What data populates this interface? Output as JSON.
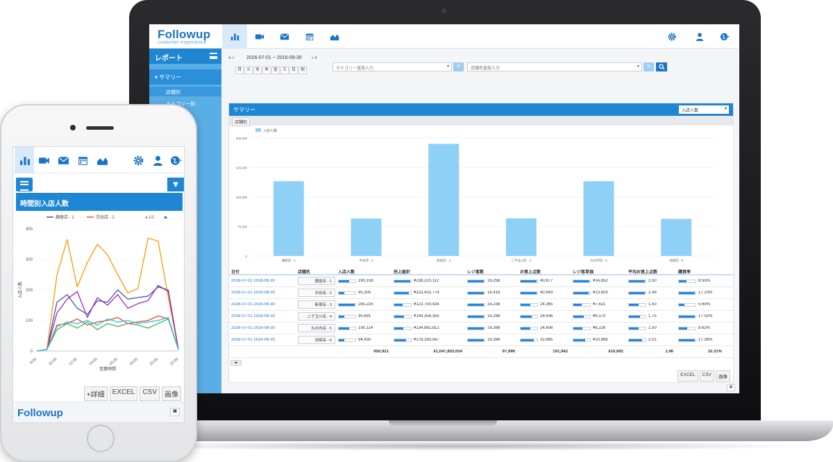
{
  "laptop": {
    "logo": {
      "brand": "Followup",
      "tagline": "customer experience"
    },
    "sidebar": {
      "title": "レポート",
      "section": "サマリー",
      "items": [
        {
          "label": "店舗別"
        },
        {
          "label": "カテゴリー別"
        }
      ]
    },
    "filters": {
      "start_date": "2016-07-01",
      "separator": "~",
      "end_date": "2016-09-30",
      "days": [
        "月",
        "火",
        "水",
        "木",
        "金",
        "土",
        "日",
        "祝"
      ],
      "category_placeholder": "カテゴリー直接入力",
      "store_placeholder": "店舗名直接入力"
    },
    "panel": {
      "title": "サマリー",
      "metric_select": "入店人数",
      "tab": "店舗別"
    },
    "table": {
      "headers": [
        "日付",
        "店舗名",
        "入店人数",
        "売上総計",
        "レジ客数",
        "お買上点数",
        "レジ客単価",
        "平均お買上点数",
        "購買率"
      ],
      "rows": [
        {
          "date": "2016-07-01 2016-09-30",
          "store": "銀座店 - 1",
          "visitors": "190,156",
          "sales": "¥238,220,112",
          "customers": "16,258",
          "items": "40,677",
          "unit_price": "¥14,652",
          "avg_items": "2.50",
          "rate": "8.55%"
        },
        {
          "date": "2016-07-01 2016-09-30",
          "store": "渋谷店 - 2",
          "visitors": "95,305",
          "sales": "¥223,432,774",
          "customers": "16,418",
          "items": "40,943",
          "unit_price": "¥13,609",
          "avg_items": "2.49",
          "rate": "17.23%"
        },
        {
          "date": "2016-07-01 2016-09-30",
          "store": "新宿店 - 3",
          "visitors": "285,225",
          "sales": "¥123,750,434",
          "customers": "16,238",
          "items": "24,365",
          "unit_price": "¥7,621",
          "avg_items": "1.50",
          "rate": "5.69%"
        },
        {
          "date": "2016-07-01 2016-09-30",
          "store": "二子玉川店 - 4",
          "visitors": "95,691",
          "sales": "¥149,356,355",
          "customers": "16,288",
          "items": "28,436",
          "unit_price": "¥9,170",
          "avg_items": "1.75",
          "rate": "17.02%"
        },
        {
          "date": "2016-07-01 2016-09-30",
          "store": "丸の内店 - 5",
          "visitors": "190,114",
          "sales": "¥134,882,812",
          "customers": "16,398",
          "items": "24,606",
          "unit_price": "¥8,226",
          "avg_items": "1.50",
          "rate": "8.63%"
        },
        {
          "date": "2016-07-01 2016-09-30",
          "store": "池袋店 - 6",
          "visitors": "94,430",
          "sales": "¥178,160,567",
          "customers": "16,396",
          "items": "32,695",
          "unit_price": "¥10,866",
          "avg_items": "2.01",
          "rate": "17.36%"
        }
      ],
      "totals": {
        "visitors": "950,921",
        "sales": "¥1,047,803,054",
        "customers": "97,996",
        "items": "191,942",
        "unit_price": "¥10,692",
        "avg_items": "1.96",
        "rate": "10.31%"
      }
    },
    "exports": [
      "EXCEL",
      "CSV",
      "画像"
    ]
  },
  "phone": {
    "chart_title": "時間別入店人数",
    "pager": "1/3",
    "buttons": [
      "+詳細",
      "EXCEL",
      "CSV",
      "画像"
    ],
    "logo": "Followup"
  },
  "chart_data": [
    {
      "type": "bar",
      "legend": [
        "入店人数"
      ],
      "categories": [
        "銀座店 - 1",
        "渋谷店 - 2",
        "新宿店 - 3",
        "二子玉川店 - 4",
        "丸の内店 - 5",
        "池袋店 - 6"
      ],
      "series": [
        {
          "name": "入店人数",
          "values": [
            190156,
            95305,
            285225,
            95691,
            190114,
            94430
          ]
        }
      ],
      "ylim": [
        0,
        300000
      ],
      "yticks": [
        "0",
        "75,000",
        "150,000",
        "225,000",
        "300,000"
      ],
      "color": "#8fd0f7"
    },
    {
      "type": "line",
      "title": "時間別入店人数",
      "xlabel": "営業時間",
      "ylabel": "入店人数",
      "x": [
        "8:00",
        "9:00",
        "10:00",
        "11:00",
        "12:00",
        "13:00",
        "14:00",
        "15:00",
        "16:00",
        "17:00",
        "18:00",
        "19:00",
        "20:00",
        "21:00",
        "22:00"
      ],
      "xticks": [
        "8:00",
        "10:00",
        "12:00",
        "14:00",
        "16:00",
        "18:00",
        "20:00",
        "22:00"
      ],
      "ylim": [
        0,
        400
      ],
      "yticks": [
        "0",
        "100",
        "200",
        "300",
        "400"
      ],
      "legend_visible": [
        "銀座店 - 1",
        "渋谷店 - 2"
      ],
      "series": [
        {
          "name": "銀座店 - 1",
          "color": "#3f51b5",
          "values": [
            0,
            5,
            160,
            185,
            140,
            120,
            165,
            160,
            200,
            170,
            175,
            180,
            210,
            200,
            5
          ]
        },
        {
          "name": "渋谷店 - 2",
          "color": "#f44336",
          "values": [
            0,
            5,
            85,
            90,
            105,
            85,
            95,
            100,
            110,
            90,
            95,
            100,
            115,
            105,
            5
          ]
        },
        {
          "name": "",
          "color": "#ff9800",
          "values": [
            0,
            5,
            250,
            365,
            210,
            290,
            350,
            315,
            250,
            190,
            205,
            370,
            360,
            175,
            5
          ]
        },
        {
          "name": "",
          "color": "#9c27b0",
          "values": [
            0,
            5,
            125,
            170,
            195,
            110,
            175,
            150,
            185,
            140,
            155,
            165,
            215,
            195,
            5
          ]
        },
        {
          "name": "",
          "color": "#4caf50",
          "values": [
            0,
            5,
            70,
            90,
            75,
            95,
            70,
            90,
            80,
            90,
            85,
            75,
            90,
            105,
            5
          ]
        },
        {
          "name": "",
          "color": "#26c6da",
          "values": [
            0,
            5,
            80,
            95,
            90,
            100,
            85,
            105,
            95,
            100,
            90,
            95,
            100,
            110,
            5
          ]
        }
      ]
    }
  ]
}
